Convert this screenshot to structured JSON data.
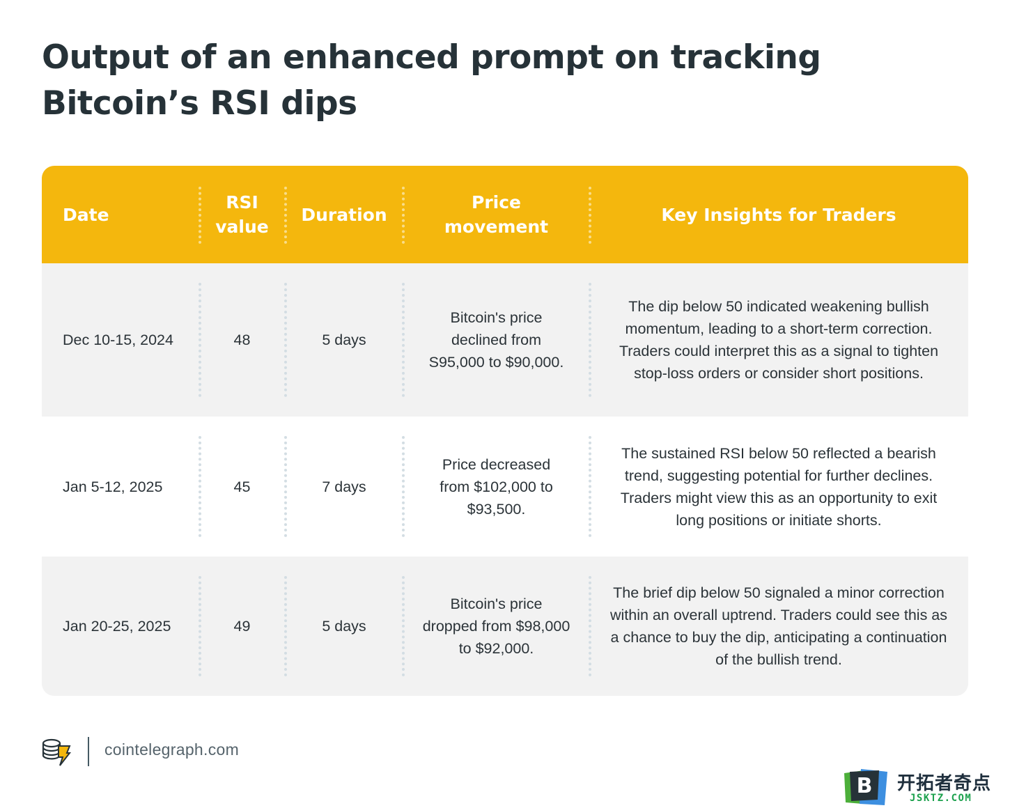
{
  "title": "Output of an enhanced prompt on tracking Bitcoin’s RSI dips",
  "table": {
    "headers": [
      "Date",
      "RSI value",
      "Duration",
      "Price movement",
      "Key Insights for Traders"
    ],
    "rows": [
      {
        "date": "Dec 10-15, 2024",
        "rsi": "48",
        "duration": "5 days",
        "price": "Bitcoin's price declined from S95,000 to $90,000.",
        "insight": "The dip below 50 indicated weakening bullish momentum, leading to a short-term correction. Traders could interpret this as a signal to tighten stop-loss orders or consider short positions."
      },
      {
        "date": "Jan 5-12, 2025",
        "rsi": "45",
        "duration": "7 days",
        "price": "Price decreased from $102,000 to $93,500.",
        "insight": "The sustained RSI below 50 reflected a bearish trend, suggesting potential for further declines. Traders might view this as an opportunity to exit long positions or initiate shorts."
      },
      {
        "date": "Jan 20-25, 2025",
        "rsi": "49",
        "duration": "5 days",
        "price": "Bitcoin's price dropped from $98,000 to $92,000.",
        "insight": "The brief dip below 50 signaled a minor correction within an overall uptrend. Traders could see this as a chance to buy the dip, anticipating a continuation of the bullish trend."
      }
    ]
  },
  "footer": {
    "logo_icon": "cointelegraph-logo-icon",
    "site": "cointelegraph.com"
  },
  "watermark": {
    "icon": "b-logo-icon",
    "name_cn": "开拓者奇点",
    "domain": "JSKTZ.COM"
  },
  "colors": {
    "header_bg": "#f4b70d",
    "row_gray": "#f2f2f2",
    "text_dark": "#263238"
  }
}
